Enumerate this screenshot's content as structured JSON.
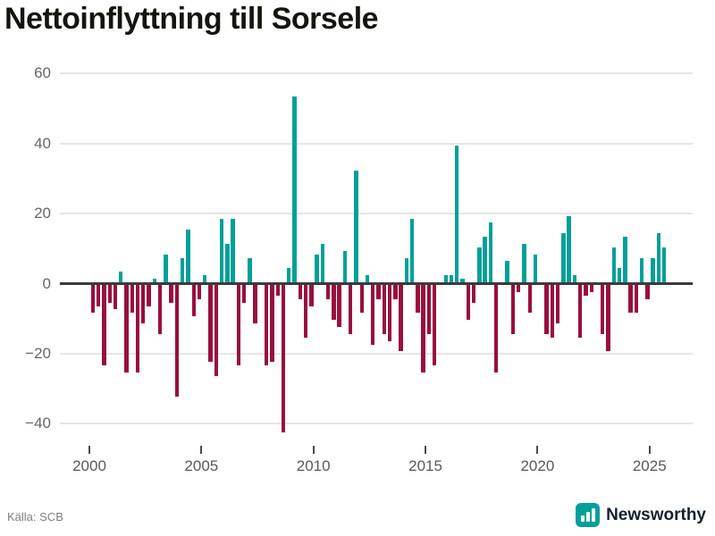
{
  "title": "Nettoinflyttning till Sorsele",
  "source": "Källa: SCB",
  "branding": {
    "name": "Newsworthy"
  },
  "colors": {
    "positive": "#00a099",
    "negative": "#990f3d",
    "grid": "#e5e5e5",
    "zero_line": "#3b3b3b",
    "axis_text": "#666666",
    "title_text": "#15150f",
    "source_text": "#808080",
    "brand_icon": "#00a099",
    "brand_text": "#15222e"
  },
  "y_axis": {
    "ticks": [
      60,
      40,
      20,
      0,
      -20,
      -40
    ],
    "labels": [
      "60",
      "40",
      "20",
      "0",
      "−20",
      "−40"
    ]
  },
  "x_axis": {
    "years": [
      2000,
      2005,
      2010,
      2015,
      2020,
      2025
    ]
  },
  "chart_data": {
    "type": "bar",
    "title": "Nettoinflyttning till Sorsele",
    "frequency": "quarterly",
    "ylim": [
      -45,
      60
    ],
    "grid": "horizontal",
    "years_data": [
      {
        "year": 2000,
        "values": [
          -8,
          -6,
          -23,
          -5
        ]
      },
      {
        "year": 2001,
        "values": [
          -7,
          3,
          -25,
          -8
        ]
      },
      {
        "year": 2002,
        "values": [
          -25,
          -11,
          -6,
          1
        ]
      },
      {
        "year": 2003,
        "values": [
          -14,
          8,
          -5,
          -32
        ]
      },
      {
        "year": 2004,
        "values": [
          7,
          15,
          -9,
          -4
        ]
      },
      {
        "year": 2005,
        "values": [
          2,
          -22,
          -26,
          18
        ]
      },
      {
        "year": 2006,
        "values": [
          11,
          18,
          -23,
          -5
        ]
      },
      {
        "year": 2007,
        "values": [
          7,
          -11,
          0,
          -23
        ]
      },
      {
        "year": 2008,
        "values": [
          -22,
          -3,
          -42,
          4
        ]
      },
      {
        "year": 2009,
        "values": [
          53,
          -4,
          -15,
          -6
        ]
      },
      {
        "year": 2010,
        "values": [
          8,
          11,
          -4,
          -10
        ]
      },
      {
        "year": 2011,
        "values": [
          -12,
          9,
          -14,
          32
        ]
      },
      {
        "year": 2012,
        "values": [
          -8,
          2,
          -17,
          -4
        ]
      },
      {
        "year": 2013,
        "values": [
          -14,
          -16,
          -4,
          -19
        ]
      },
      {
        "year": 2014,
        "values": [
          7,
          18,
          -8,
          -25
        ]
      },
      {
        "year": 2015,
        "values": [
          -14,
          -23,
          0,
          2
        ]
      },
      {
        "year": 2016,
        "values": [
          2,
          39,
          1,
          -10
        ]
      },
      {
        "year": 2017,
        "values": [
          -5,
          10,
          13,
          17
        ]
      },
      {
        "year": 2018,
        "values": [
          -25,
          0,
          6,
          -14
        ]
      },
      {
        "year": 2019,
        "values": [
          -2,
          11,
          -8,
          8
        ]
      },
      {
        "year": 2020,
        "values": [
          0,
          -14,
          -15,
          -11
        ]
      },
      {
        "year": 2021,
        "values": [
          14,
          19,
          2,
          -15
        ]
      },
      {
        "year": 2022,
        "values": [
          -3,
          -2,
          0,
          -14
        ]
      },
      {
        "year": 2023,
        "values": [
          -19,
          10,
          4,
          13
        ]
      },
      {
        "year": 2024,
        "values": [
          -8,
          -8,
          7,
          -4
        ]
      },
      {
        "year": 2025,
        "values": [
          7,
          14,
          10
        ]
      }
    ]
  }
}
